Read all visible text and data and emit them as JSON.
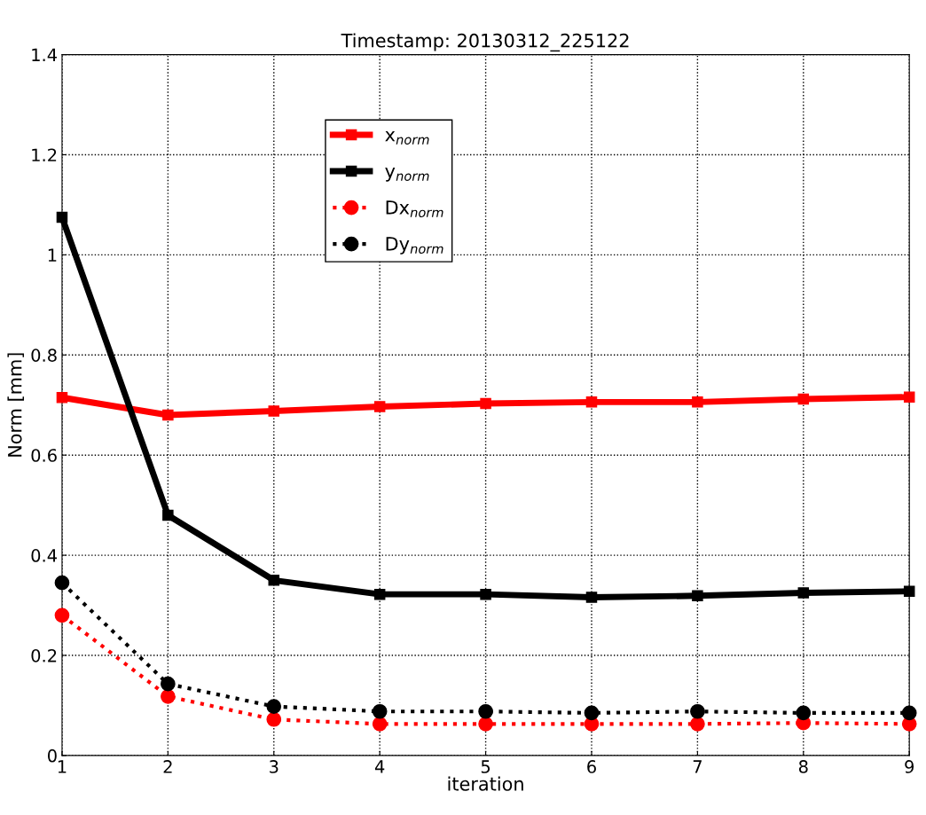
{
  "chart_data": {
    "type": "line",
    "title": "Timestamp: 20130312_225122",
    "xlabel": "iteration",
    "ylabel": "Norm [mm]",
    "x": [
      1,
      2,
      3,
      4,
      5,
      6,
      7,
      8,
      9
    ],
    "series": [
      {
        "name": "x$_{norm}$",
        "color": "#ff0000",
        "marker": "square",
        "line_style": "solid",
        "values": [
          0.715,
          0.68,
          0.688,
          0.697,
          0.703,
          0.706,
          0.706,
          0.712,
          0.716
        ]
      },
      {
        "name": "y$_{norm}$",
        "color": "#000000",
        "marker": "square",
        "line_style": "solid",
        "values": [
          1.075,
          0.48,
          0.35,
          0.322,
          0.322,
          0.316,
          0.319,
          0.325,
          0.328
        ]
      },
      {
        "name": "Dx$_{norm}$",
        "color": "#ff0000",
        "marker": "circle",
        "line_style": "dotted",
        "values": [
          0.28,
          0.118,
          0.072,
          0.063,
          0.063,
          0.063,
          0.063,
          0.065,
          0.063
        ]
      },
      {
        "name": "Dy$_{norm}$",
        "color": "#000000",
        "marker": "circle",
        "line_style": "dotted",
        "values": [
          0.345,
          0.143,
          0.098,
          0.088,
          0.088,
          0.085,
          0.088,
          0.085,
          0.085
        ]
      }
    ],
    "xlim": [
      1,
      9
    ],
    "xticks": [
      1,
      2,
      3,
      4,
      5,
      6,
      7,
      8,
      9
    ],
    "ylim": [
      0,
      1.4
    ],
    "yticks": [
      0,
      0.2,
      0.4,
      0.6,
      0.8,
      1,
      1.2,
      1.4
    ],
    "grid": true,
    "legend": "top"
  }
}
